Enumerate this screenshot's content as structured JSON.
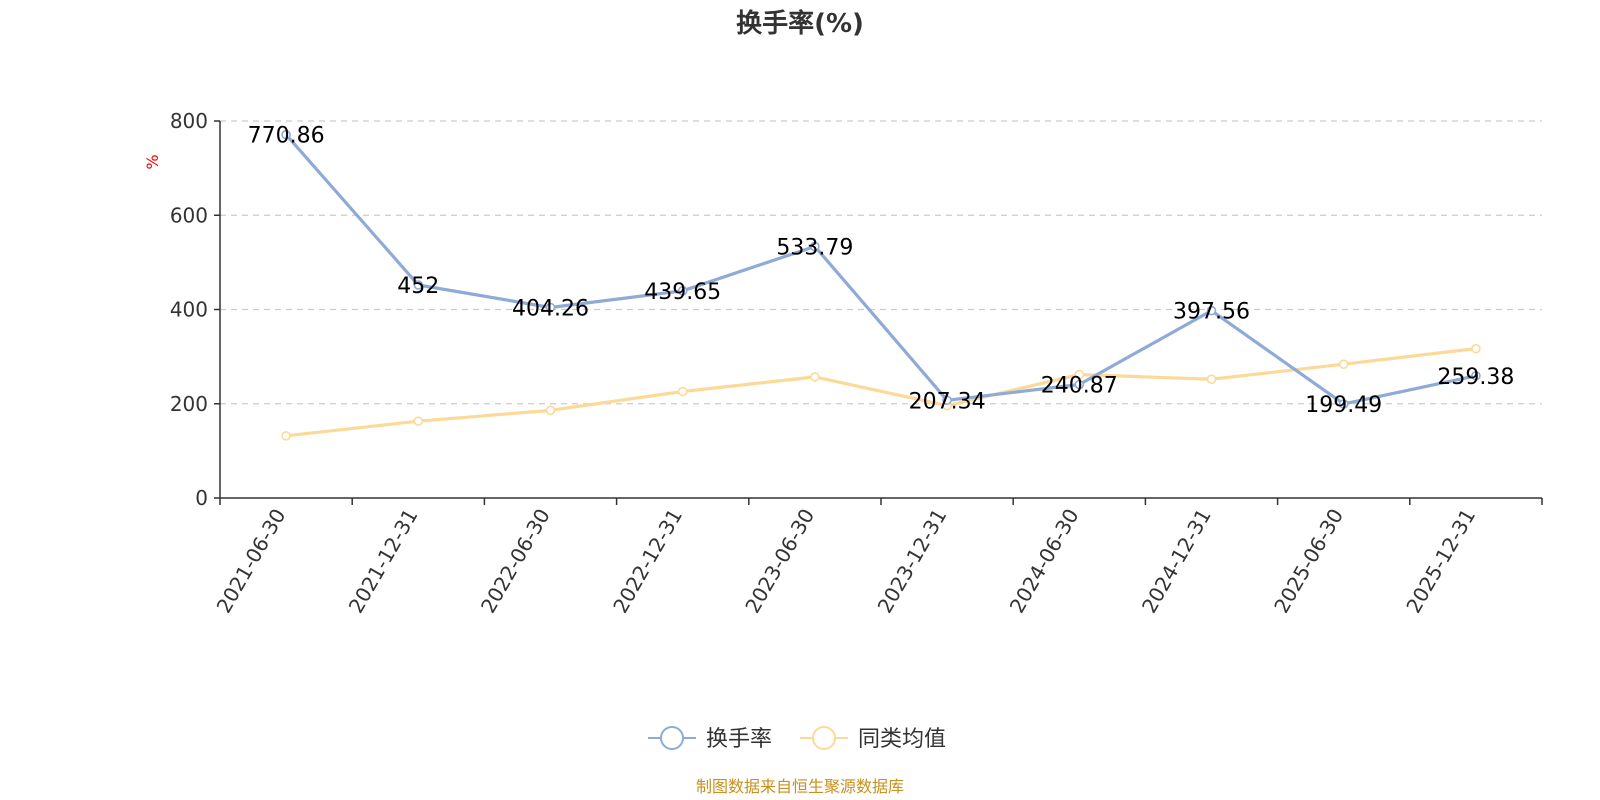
{
  "chart_data": {
    "type": "line",
    "title": "换手率(%)",
    "ylabel": "%",
    "xlabel": "",
    "ylim": [
      0,
      800
    ],
    "yticks": [
      0,
      200,
      400,
      600,
      800
    ],
    "categories": [
      "2021-06-30",
      "2021-12-31",
      "2022-06-30",
      "2022-12-31",
      "2023-06-30",
      "2023-12-31",
      "2024-06-30",
      "2024-12-31",
      "2025-06-30",
      "2025-12-31"
    ],
    "series": [
      {
        "name": "换手率",
        "color": "#8eaad6",
        "values": [
          770.86,
          452,
          404.26,
          439.65,
          533.79,
          207.34,
          240.87,
          397.56,
          199.49,
          259.38
        ],
        "labels": [
          "770.86",
          "452",
          "404.26",
          "439.65",
          "533.79",
          "207.34",
          "240.87",
          "397.56",
          "199.49",
          "259.38"
        ]
      },
      {
        "name": "同类均值",
        "color": "#fdd998",
        "values": [
          132,
          163,
          186,
          226,
          257,
          196,
          262,
          252,
          284,
          317
        ]
      }
    ],
    "grid": "horizontal-dashed",
    "legend_position": "bottom-center"
  },
  "source_text": "制图数据来自恒生聚源数据库"
}
